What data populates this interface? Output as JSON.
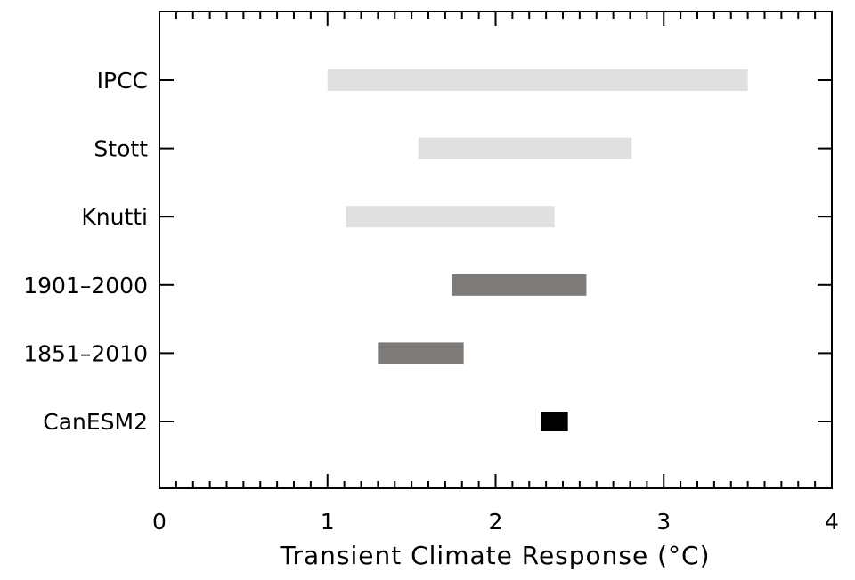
{
  "chart_data": {
    "type": "bar",
    "orientation": "horizontal-range",
    "xlabel": "Transient Climate Response (°C)",
    "xlim": [
      0,
      4
    ],
    "x_ticks": [
      "0",
      "1",
      "2",
      "3",
      "4"
    ],
    "grid": false,
    "categories": [
      "IPCC",
      "Stott",
      "Knutti",
      "1901–2000",
      "1851–2010",
      "CanESM2"
    ],
    "ranges": [
      {
        "label": "IPCC",
        "low": 1.0,
        "high": 3.5,
        "color": "#e0e0e0"
      },
      {
        "label": "Stott",
        "low": 1.54,
        "high": 2.81,
        "color": "#e0e0e0"
      },
      {
        "label": "Knutti",
        "low": 1.11,
        "high": 2.35,
        "color": "#e0e0e0"
      },
      {
        "label": "1901–2000",
        "low": 1.74,
        "high": 2.54,
        "color": "#7d7a78"
      },
      {
        "label": "1851–2010",
        "low": 1.3,
        "high": 1.81,
        "color": "#7d7a78"
      },
      {
        "label": "CanESM2",
        "low": 2.27,
        "high": 2.43,
        "color": "#000000"
      }
    ]
  }
}
